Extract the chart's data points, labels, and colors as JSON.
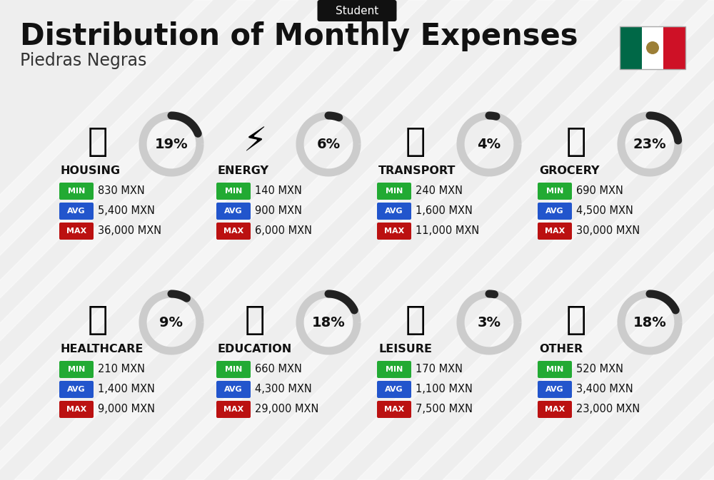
{
  "title": "Distribution of Monthly Expenses",
  "subtitle": "Piedras Negras",
  "category_label": "Student",
  "bg_color": "#eeeeee",
  "categories": [
    {
      "name": "HOUSING",
      "pct": 19,
      "min": "830 MXN",
      "avg": "5,400 MXN",
      "max": "36,000 MXN",
      "row": 0,
      "col": 0
    },
    {
      "name": "ENERGY",
      "pct": 6,
      "min": "140 MXN",
      "avg": "900 MXN",
      "max": "6,000 MXN",
      "row": 0,
      "col": 1
    },
    {
      "name": "TRANSPORT",
      "pct": 4,
      "min": "240 MXN",
      "avg": "1,600 MXN",
      "max": "11,000 MXN",
      "row": 0,
      "col": 2
    },
    {
      "name": "GROCERY",
      "pct": 23,
      "min": "690 MXN",
      "avg": "4,500 MXN",
      "max": "30,000 MXN",
      "row": 0,
      "col": 3
    },
    {
      "name": "HEALTHCARE",
      "pct": 9,
      "min": "210 MXN",
      "avg": "1,400 MXN",
      "max": "9,000 MXN",
      "row": 1,
      "col": 0
    },
    {
      "name": "EDUCATION",
      "pct": 18,
      "min": "660 MXN",
      "avg": "4,300 MXN",
      "max": "29,000 MXN",
      "row": 1,
      "col": 1
    },
    {
      "name": "LEISURE",
      "pct": 3,
      "min": "170 MXN",
      "avg": "1,100 MXN",
      "max": "7,500 MXN",
      "row": 1,
      "col": 2
    },
    {
      "name": "OTHER",
      "pct": 18,
      "min": "520 MXN",
      "avg": "3,400 MXN",
      "max": "23,000 MXN",
      "row": 1,
      "col": 3
    }
  ],
  "color_min": "#22aa33",
  "color_avg": "#2255cc",
  "color_max": "#bb1111",
  "arc_color": "#222222",
  "arc_bg_color": "#cccccc"
}
